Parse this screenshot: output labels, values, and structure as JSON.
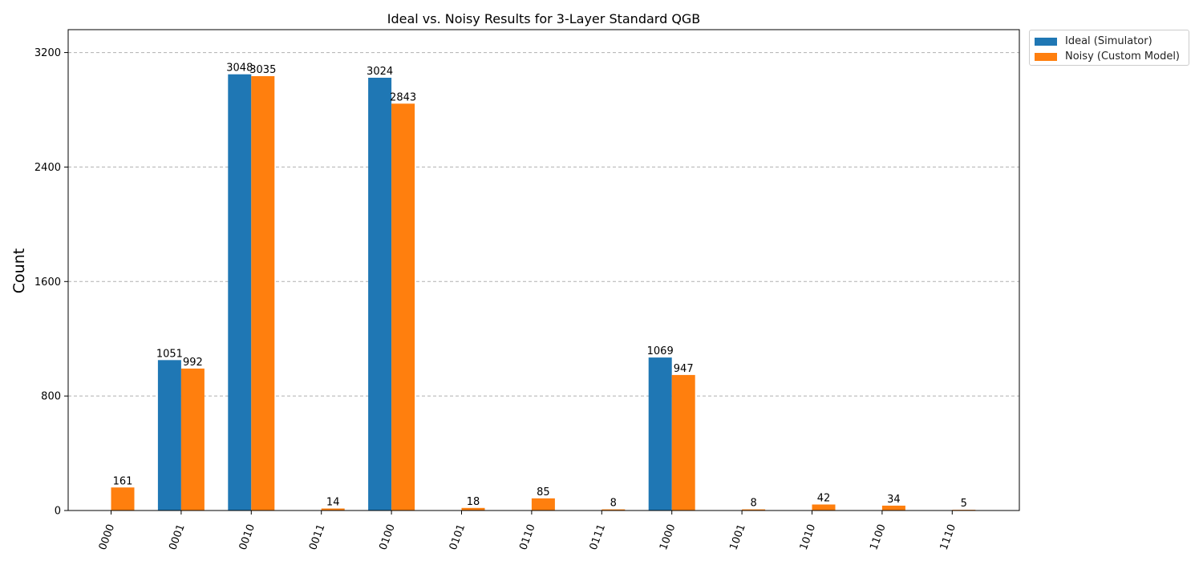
{
  "chart_data": {
    "type": "bar",
    "title": "Ideal vs. Noisy Results for 3-Layer Standard QGB",
    "xlabel": "",
    "ylabel": "Count",
    "ylim": [
      0,
      3360
    ],
    "yticks": [
      0,
      800,
      1600,
      2400,
      3200
    ],
    "grid": "horizontal dashed",
    "legend_placement": "outside top-right",
    "categories": [
      "0000",
      "0001",
      "0010",
      "0011",
      "0100",
      "0101",
      "0110",
      "0111",
      "1000",
      "1001",
      "1010",
      "1100",
      "1110"
    ],
    "series": [
      {
        "name": "Ideal (Simulator)",
        "color": "#1f77b4",
        "values": [
          0,
          1051,
          3048,
          0,
          3024,
          0,
          0,
          0,
          1069,
          0,
          0,
          0,
          0
        ]
      },
      {
        "name": "Noisy (Custom Model)",
        "color": "#ff7f0e",
        "values": [
          161,
          992,
          3035,
          14,
          2843,
          18,
          85,
          8,
          947,
          8,
          42,
          34,
          5
        ]
      }
    ]
  }
}
